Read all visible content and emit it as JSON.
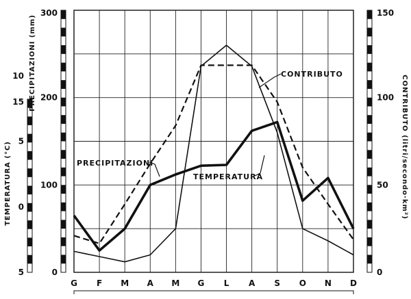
{
  "chart_data": {
    "type": "line",
    "categories": [
      "G",
      "F",
      "M",
      "A",
      "M",
      "G",
      "L",
      "A",
      "S",
      "O",
      "N",
      "D"
    ],
    "series": [
      {
        "name": "PRECIPITAZIONI",
        "axis": "precipitazioni",
        "values": [
          65,
          25,
          50,
          100,
          112,
          122,
          123,
          162,
          172,
          82,
          108,
          50
        ],
        "style": "thick"
      },
      {
        "name": "TEMPERATURA",
        "axis": "temperatura",
        "values": [
          -2.2,
          -2.8,
          0.2,
          3.3,
          6.2,
          10.8,
          10.8,
          10.8,
          8.0,
          3.0,
          0.2,
          -2.5
        ],
        "style": "dashed"
      },
      {
        "name": "CONTRIBUTO",
        "axis": "contributo",
        "values": [
          12,
          9,
          6,
          10,
          25,
          118,
          130,
          118,
          80,
          25,
          18,
          10
        ],
        "style": "thin"
      }
    ],
    "axes": {
      "precipitazioni": {
        "label": "PRECIPITAZIONI (mm)",
        "ylim": [
          0,
          300
        ],
        "ticks": [
          "0",
          "100",
          "200",
          "300"
        ]
      },
      "temperatura": {
        "label": "TEMPERATURA (°C)",
        "ylim": [
          -5,
          15
        ],
        "ticks": [
          "5",
          "0",
          "5",
          "10",
          "15"
        ]
      },
      "contributo": {
        "label": "CONTRIBUTO (litri/secondo·km²)",
        "ylim": [
          0,
          150
        ],
        "ticks": [
          "0",
          "50",
          "100",
          "150"
        ]
      }
    },
    "grid": true,
    "annotations": [
      "CONTRIBUTO",
      "PRECIPITAZIONI",
      "TEMPERATURA"
    ]
  }
}
